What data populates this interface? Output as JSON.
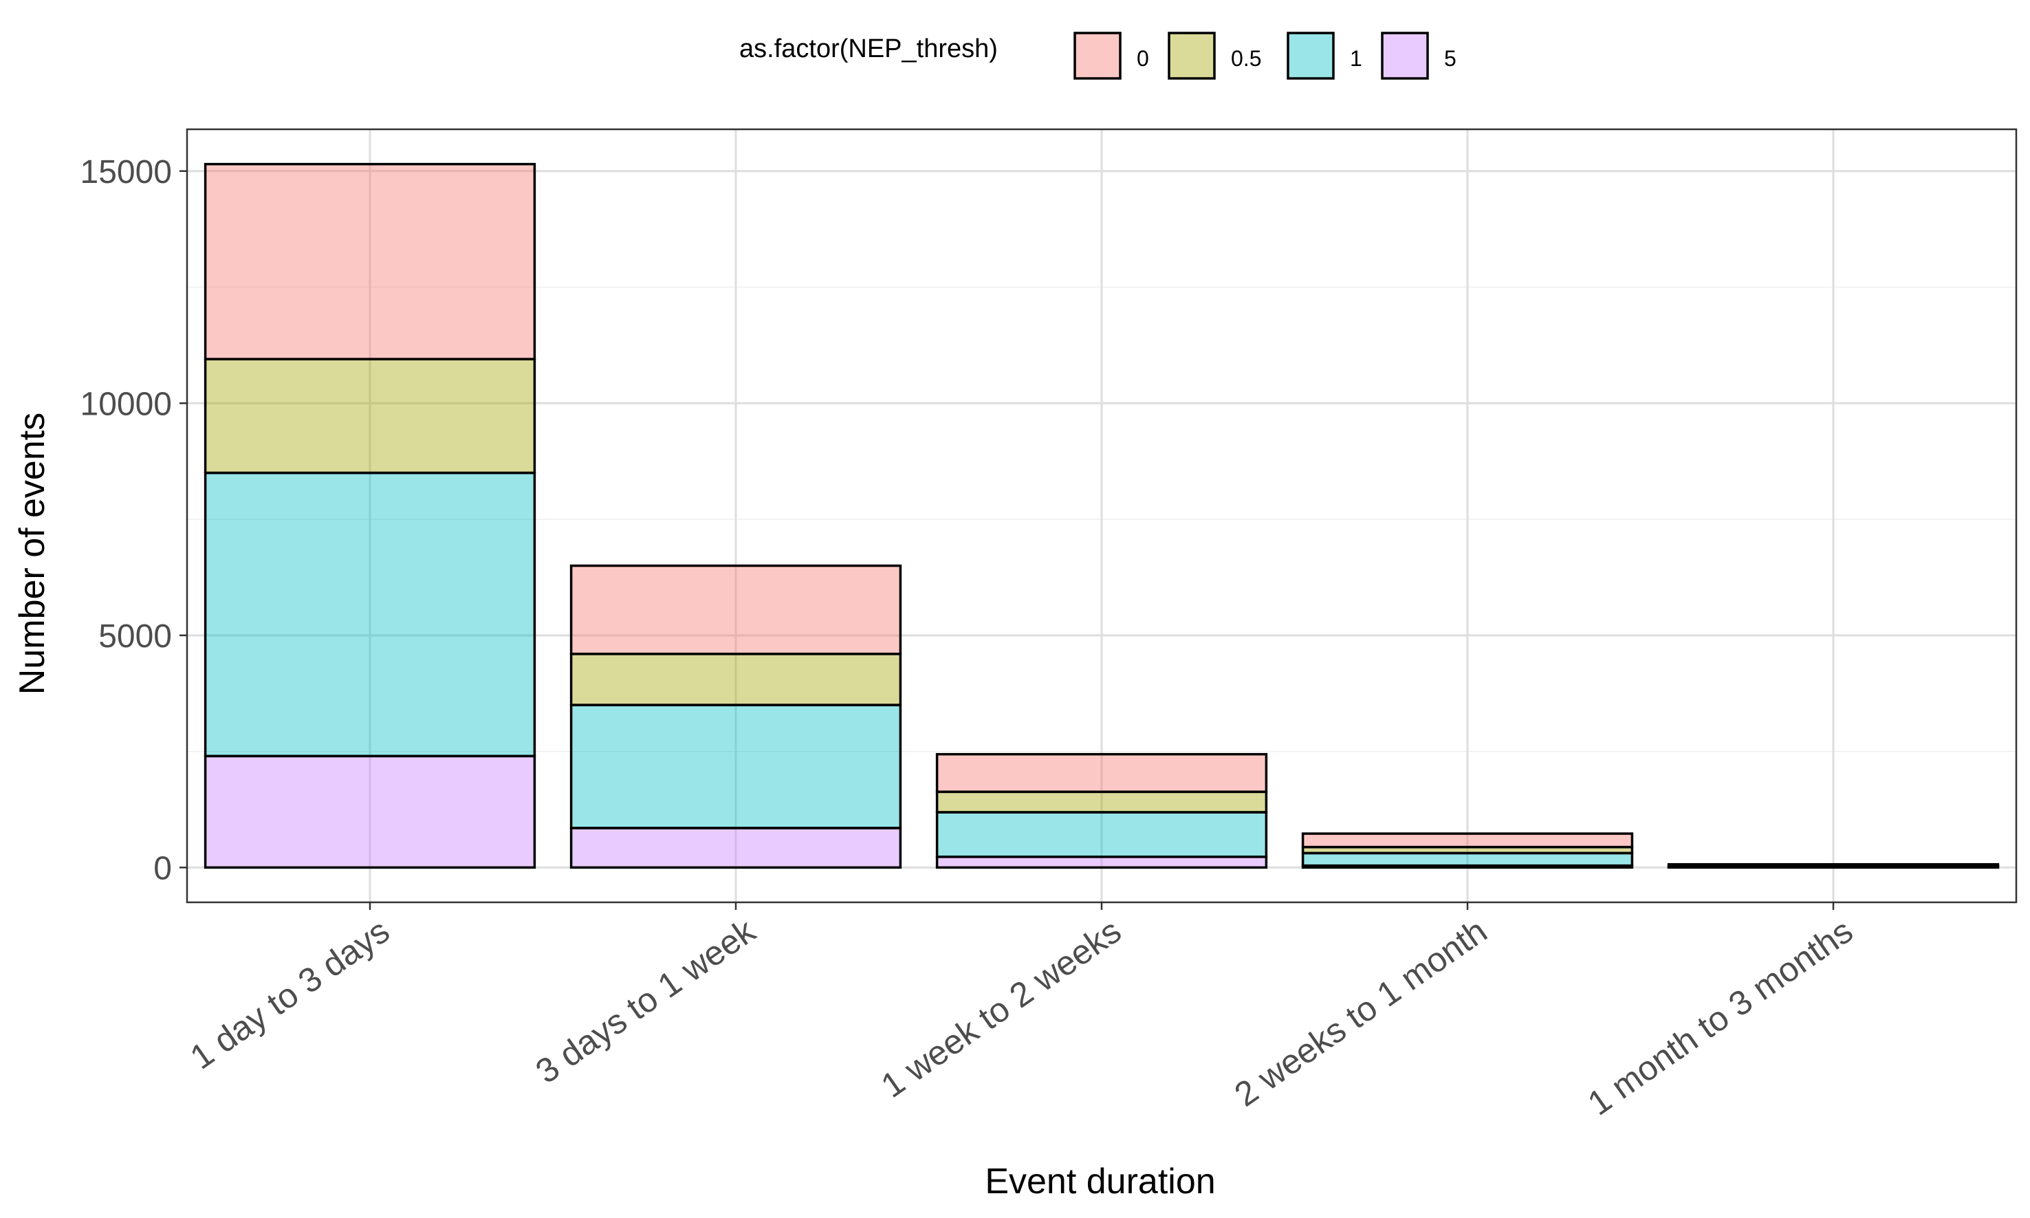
{
  "chart_data": {
    "type": "bar",
    "stacked": true,
    "xlabel": "Event duration",
    "ylabel": "Number of events",
    "ylim": [
      -750,
      15900
    ],
    "yticks": [
      0,
      5000,
      10000,
      15000
    ],
    "grid": true,
    "legend": {
      "title": "as.factor(NEP_thresh)",
      "position": "top",
      "entries": [
        {
          "label": "0",
          "color": "#f8766d"
        },
        {
          "label": "0.5",
          "color": "#a3a500"
        },
        {
          "label": "1",
          "color": "#00bfc4"
        },
        {
          "label": "5",
          "color": "#c77cff"
        }
      ]
    },
    "bar_alpha": 0.4,
    "categories": [
      "1 day to 3 days",
      "3 days to 1 week",
      "1 week to 2 weeks",
      "2 weeks to 1 month",
      "1 month to 3 months"
    ],
    "series": [
      {
        "name": "5",
        "color": "#c77cff",
        "values": [
          2400,
          850,
          230,
          40,
          8
        ]
      },
      {
        "name": "1",
        "color": "#00bfc4",
        "values": [
          6100,
          2650,
          960,
          270,
          20
        ]
      },
      {
        "name": "0.5",
        "color": "#a3a500",
        "values": [
          2450,
          1100,
          440,
          130,
          10
        ]
      },
      {
        "name": "0",
        "color": "#f8766d",
        "values": [
          4200,
          1900,
          810,
          290,
          30
        ]
      }
    ]
  }
}
